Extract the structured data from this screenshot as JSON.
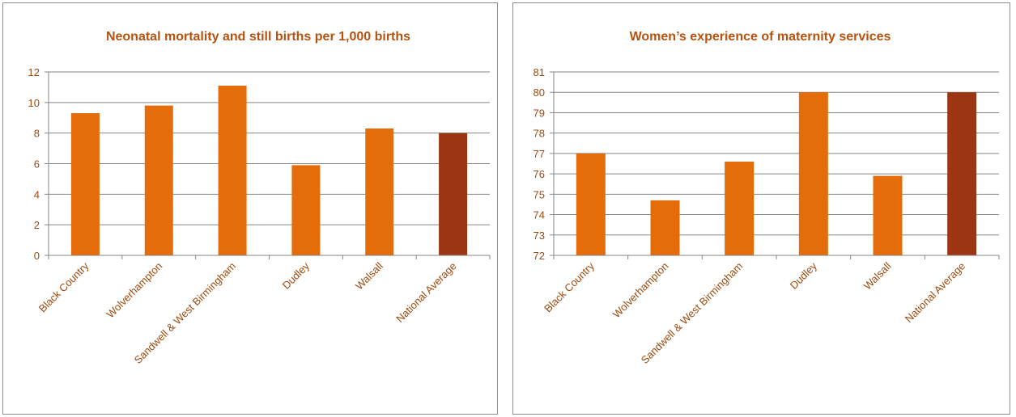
{
  "chart_data": [
    {
      "type": "bar",
      "title": "Neonatal mortality and still births per 1,000 births",
      "xlabel": "",
      "ylabel": "",
      "categories": [
        "Black Country",
        "Wolverhampton",
        "Sandwell & West Birmingham",
        "Dudley",
        "Walsall",
        "National Average"
      ],
      "values": [
        9.3,
        9.8,
        11.1,
        5.9,
        8.3,
        8.0
      ],
      "ylim": [
        0,
        12
      ],
      "yticks": [
        0,
        2,
        4,
        6,
        8,
        10,
        12
      ],
      "grid": true,
      "legend": "none"
    },
    {
      "type": "bar",
      "title": "Women’s experience of maternity services",
      "xlabel": "",
      "ylabel": "",
      "categories": [
        "Black Country",
        "Wolverhampton",
        "Sandwell & West Birmingham",
        "Dudley",
        "Walsall",
        "National Average"
      ],
      "values": [
        77.0,
        74.7,
        76.6,
        80.0,
        75.9,
        80.0
      ],
      "ylim": [
        72,
        81
      ],
      "yticks": [
        72,
        73,
        74,
        75,
        76,
        77,
        78,
        79,
        80,
        81
      ],
      "grid": true,
      "legend": "none"
    }
  ],
  "colors": {
    "bar": "#E46C0A",
    "highlight_bar": "#9C3612",
    "text": "#9C4A0E",
    "title": "#B5520F",
    "grid": "#868686"
  }
}
